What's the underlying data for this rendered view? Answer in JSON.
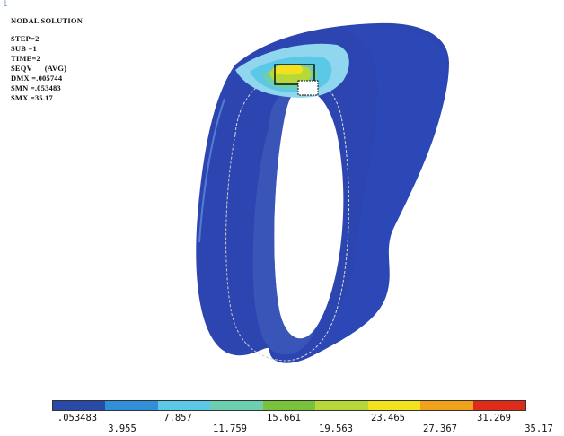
{
  "corner_mark": "1",
  "info": {
    "title": "NODAL SOLUTION",
    "lines": [
      "STEP=2",
      "SUB =1",
      "TIME=2",
      "SEQV      (AVG)",
      "DMX =.005744",
      "SMN =.053483",
      "SMX =35.17"
    ]
  },
  "legend": {
    "colors": [
      "#2a4aa8",
      "#2f8fd8",
      "#5cc8e8",
      "#6ccfb0",
      "#7ac23c",
      "#b8d83a",
      "#f2e21e",
      "#f0a21a",
      "#e02a1a"
    ],
    "upper_labels": [
      ".053483",
      "7.857",
      "15.661",
      "23.465",
      "31.269"
    ],
    "lower_labels": [
      "3.955",
      "11.759",
      "19.563",
      "27.367",
      "35.17"
    ]
  },
  "model": {
    "base_color": "#2c45b0",
    "inner_color": "#3a55b8",
    "hot_colors": [
      "#8fd6ee",
      "#5cc8e8",
      "#6ccfb0",
      "#b8d83a",
      "#f2e21e",
      "#e02a1a"
    ]
  }
}
